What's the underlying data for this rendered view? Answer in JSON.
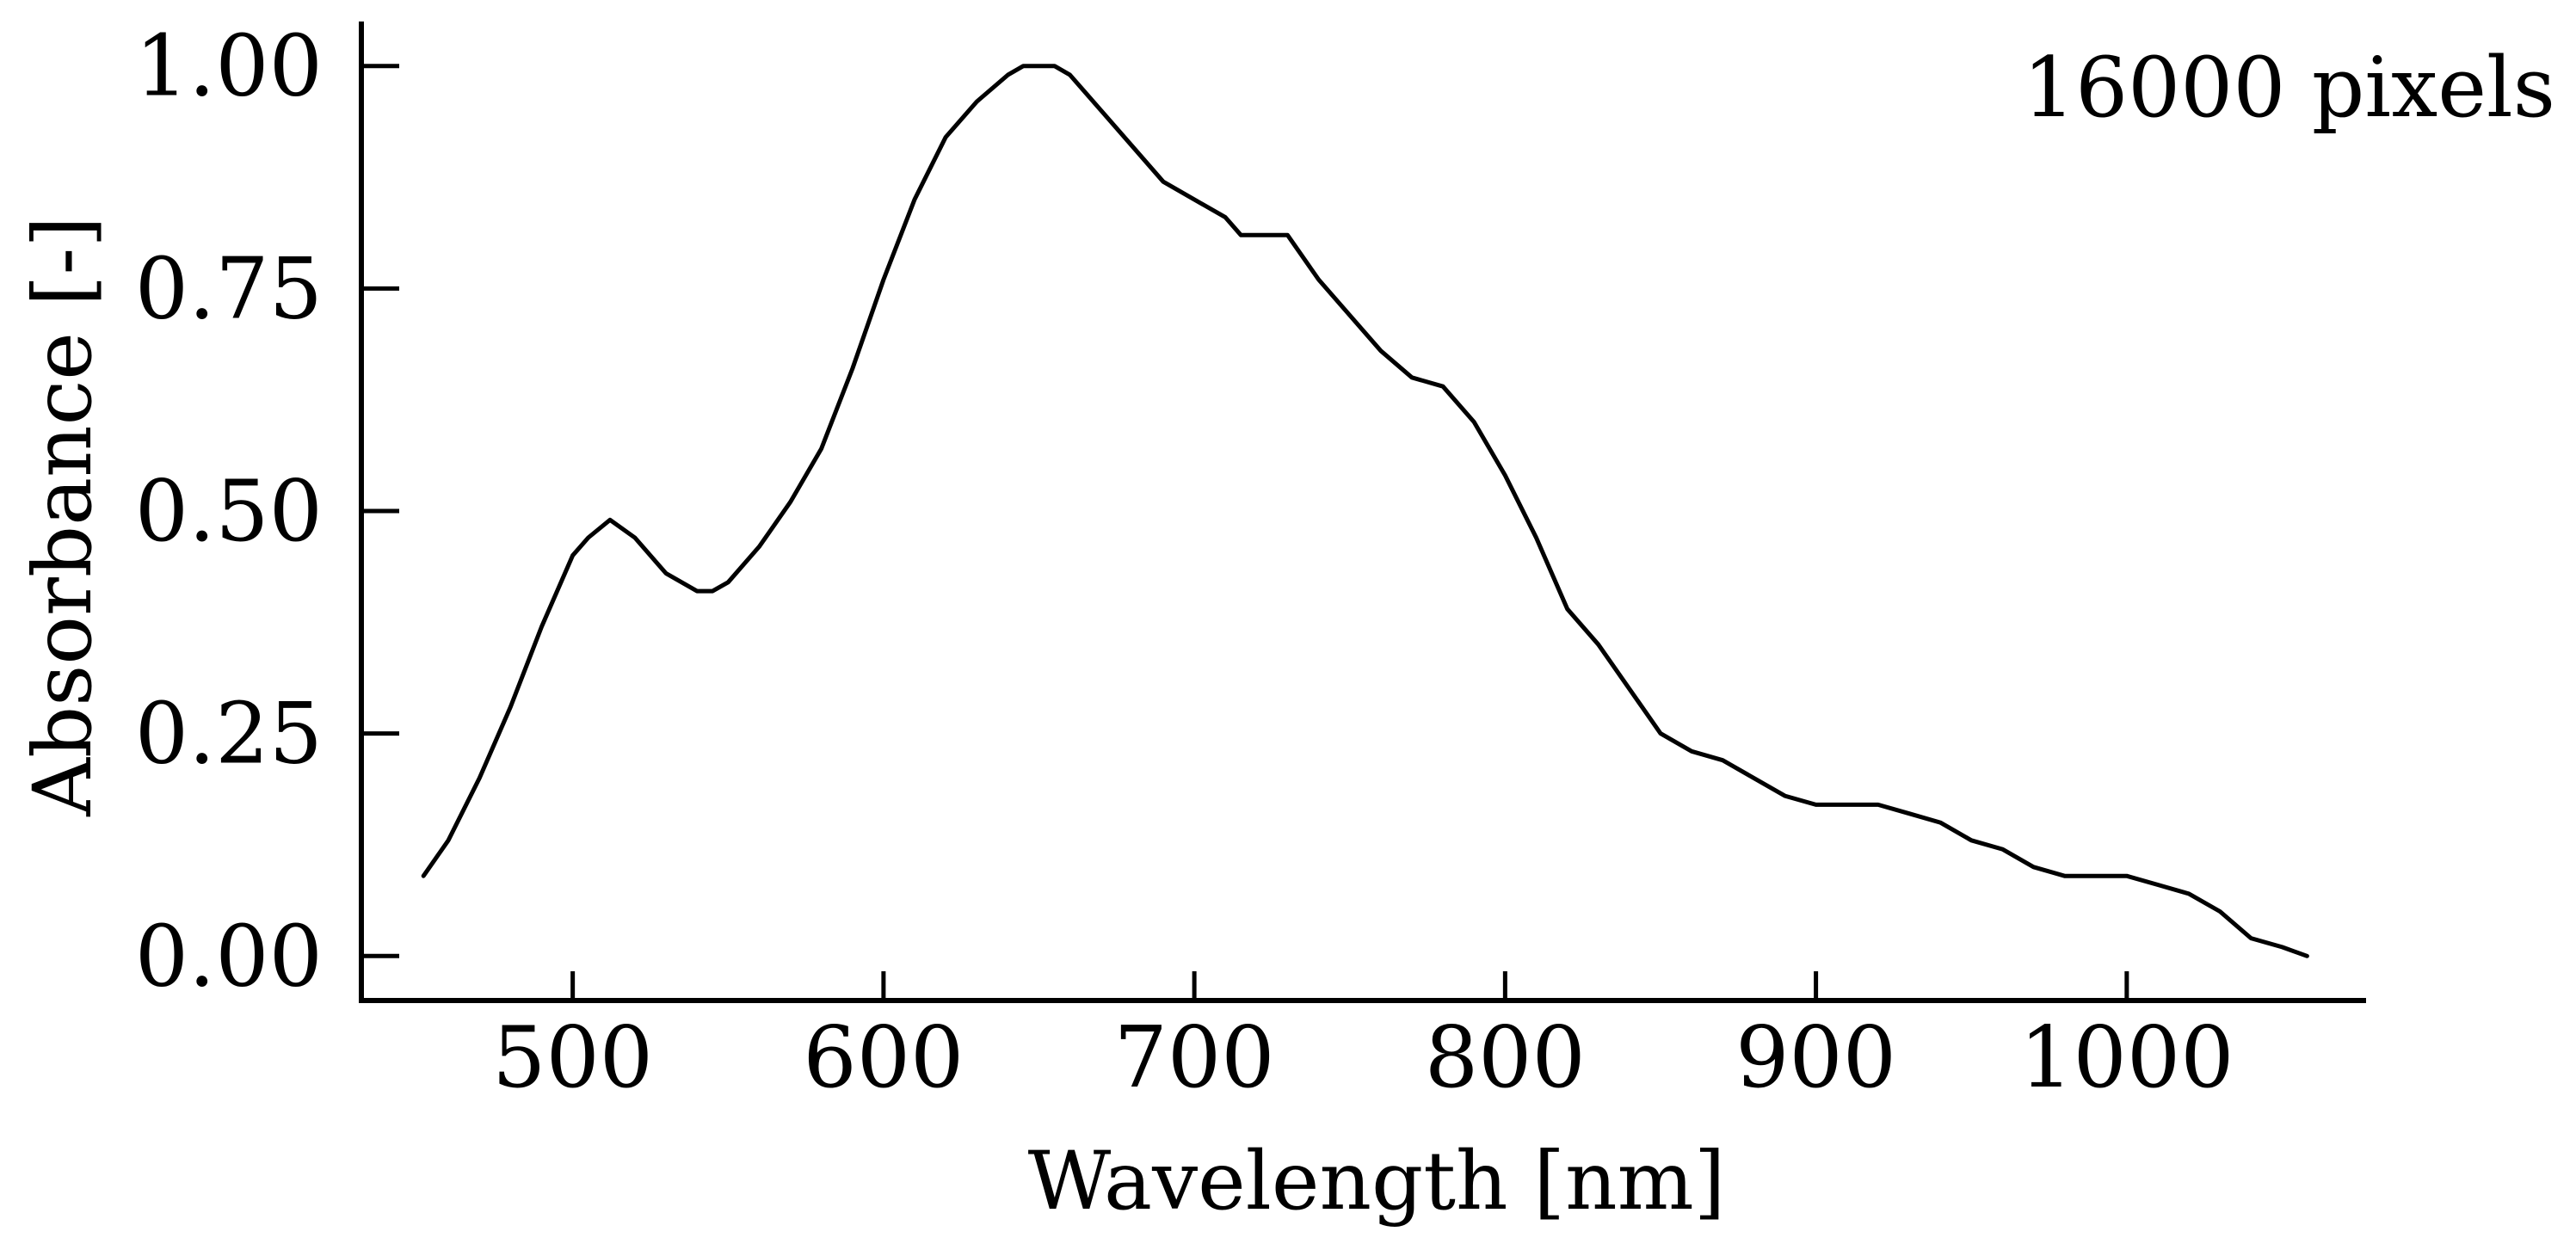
{
  "chart_data": {
    "type": "line",
    "title": "",
    "xlabel": "Wavelength [nm]",
    "ylabel": "Absorbance [-]",
    "annotation": "16000 pixels",
    "xlim": [
      432,
      1077
    ],
    "ylim": [
      -0.05,
      1.05
    ],
    "xticks": [
      500,
      600,
      700,
      800,
      900,
      1000
    ],
    "yticks": [
      0.0,
      0.25,
      0.5,
      0.75,
      1.0
    ],
    "xtick_labels": [
      "500",
      "600",
      "700",
      "800",
      "900",
      "1000"
    ],
    "ytick_labels": [
      "0.00",
      "0.25",
      "0.50",
      "0.75",
      "1.00"
    ],
    "grid": false,
    "legend": "none",
    "line_color": "#000000",
    "series": [
      {
        "x": [
          452,
          460,
          470,
          480,
          490,
          500,
          505,
          512,
          520,
          530,
          540,
          545,
          550,
          560,
          570,
          580,
          590,
          600,
          610,
          620,
          630,
          640,
          645,
          650,
          655,
          660,
          670,
          680,
          690,
          700,
          710,
          715,
          720,
          730,
          740,
          750,
          760,
          770,
          780,
          790,
          800,
          810,
          820,
          830,
          840,
          850,
          860,
          870,
          880,
          890,
          900,
          910,
          920,
          930,
          940,
          950,
          960,
          970,
          980,
          990,
          1000,
          1010,
          1020,
          1030,
          1040,
          1050,
          1058
        ],
        "values": [
          0.09,
          0.13,
          0.2,
          0.28,
          0.37,
          0.45,
          0.47,
          0.49,
          0.47,
          0.43,
          0.41,
          0.41,
          0.42,
          0.46,
          0.51,
          0.57,
          0.66,
          0.76,
          0.85,
          0.92,
          0.96,
          0.99,
          1.0,
          1.0,
          1.0,
          0.99,
          0.95,
          0.91,
          0.87,
          0.85,
          0.83,
          0.81,
          0.81,
          0.81,
          0.76,
          0.72,
          0.68,
          0.65,
          0.64,
          0.6,
          0.54,
          0.47,
          0.39,
          0.35,
          0.3,
          0.25,
          0.23,
          0.22,
          0.2,
          0.18,
          0.17,
          0.17,
          0.17,
          0.16,
          0.15,
          0.13,
          0.12,
          0.1,
          0.09,
          0.09,
          0.09,
          0.08,
          0.07,
          0.05,
          0.02,
          0.01,
          0.0
        ]
      }
    ]
  }
}
